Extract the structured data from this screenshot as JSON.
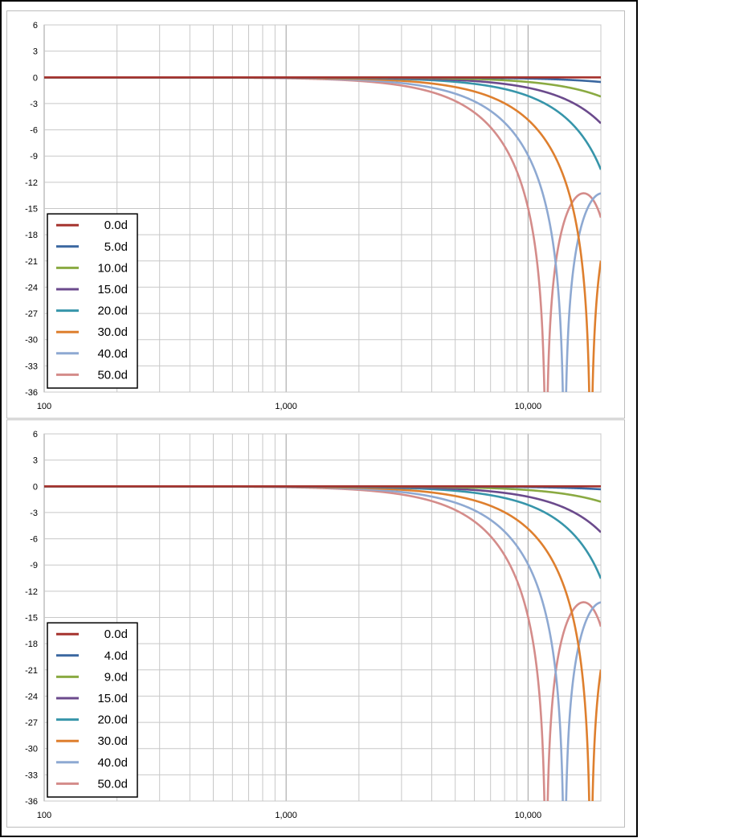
{
  "chart_data": [
    {
      "type": "line",
      "title": "",
      "xlabel": "",
      "ylabel": "",
      "x_scale": "log",
      "xlim": [
        100,
        20000
      ],
      "ylim": [
        -36,
        6
      ],
      "yticks": [
        6,
        3,
        0,
        -3,
        -6,
        -9,
        -12,
        -15,
        -18,
        -21,
        -24,
        -27,
        -30,
        -33,
        -36
      ],
      "xtick_labels": [
        "100",
        "1,000",
        "10,000"
      ],
      "grid": true,
      "legend_position": "bottom-left",
      "series": [
        {
          "name": "0.0d",
          "angle_deg": 0,
          "color": "#a5332e"
        },
        {
          "name": "5.0d",
          "angle_deg": 5,
          "color": "#3a67a0"
        },
        {
          "name": "10.0d",
          "angle_deg": 10,
          "color": "#8aaa42"
        },
        {
          "name": "15.0d",
          "angle_deg": 15,
          "color": "#6b4a8c"
        },
        {
          "name": "20.0d",
          "angle_deg": 20,
          "color": "#3795aa"
        },
        {
          "name": "30.0d",
          "angle_deg": 30,
          "color": "#de7f2e"
        },
        {
          "name": "40.0d",
          "angle_deg": 40,
          "color": "#8ea9d2"
        },
        {
          "name": "50.0d",
          "angle_deg": 50,
          "color": "#d48c8a"
        }
      ]
    },
    {
      "type": "line",
      "title": "",
      "xlabel": "",
      "ylabel": "",
      "x_scale": "log",
      "xlim": [
        100,
        20000
      ],
      "ylim": [
        -36,
        6
      ],
      "yticks": [
        6,
        3,
        0,
        -3,
        -6,
        -9,
        -12,
        -15,
        -18,
        -21,
        -24,
        -27,
        -30,
        -33,
        -36
      ],
      "xtick_labels": [
        "100",
        "1,000",
        "10,000"
      ],
      "grid": true,
      "legend_position": "bottom-left",
      "series": [
        {
          "name": "0.0d",
          "angle_deg": 0,
          "color": "#a5332e"
        },
        {
          "name": "4.0d",
          "angle_deg": 4,
          "color": "#3a67a0"
        },
        {
          "name": "9.0d",
          "angle_deg": 9,
          "color": "#8aaa42"
        },
        {
          "name": "15.0d",
          "angle_deg": 15,
          "color": "#6b4a8c"
        },
        {
          "name": "20.0d",
          "angle_deg": 20,
          "color": "#3795aa"
        },
        {
          "name": "30.0d",
          "angle_deg": 30,
          "color": "#de7f2e"
        },
        {
          "name": "40.0d",
          "angle_deg": 40,
          "color": "#8ea9d2"
        },
        {
          "name": "50.0d",
          "angle_deg": 50,
          "color": "#d48c8a"
        }
      ]
    }
  ]
}
